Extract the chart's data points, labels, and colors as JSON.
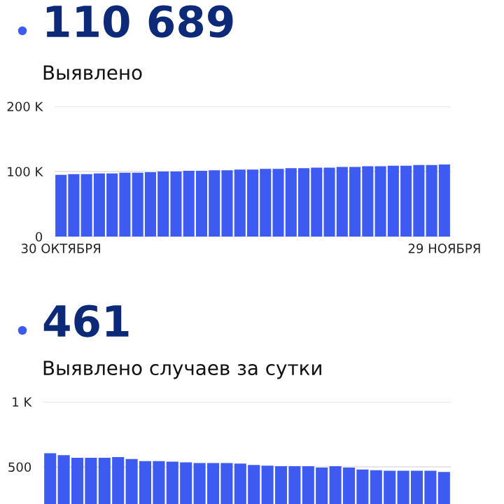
{
  "chart_data": [
    {
      "type": "bar",
      "title": "110 689",
      "subtitle": "Выявлено",
      "color": "#3d5af1",
      "categories": [
        "30 ОКТЯБРЯ",
        null,
        null,
        null,
        null,
        null,
        null,
        null,
        null,
        null,
        null,
        null,
        null,
        null,
        null,
        null,
        null,
        null,
        null,
        null,
        null,
        null,
        null,
        null,
        null,
        null,
        null,
        null,
        null,
        null,
        "29 НОЯБРЯ"
      ],
      "values": [
        95000,
        96000,
        96000,
        97000,
        97000,
        98000,
        98000,
        99000,
        100000,
        100000,
        101000,
        101000,
        102000,
        102000,
        103000,
        103000,
        104000,
        104000,
        105000,
        105000,
        106000,
        106000,
        107000,
        107000,
        108000,
        108000,
        109000,
        109000,
        110000,
        110000,
        110689
      ],
      "ylim": [
        0,
        200000
      ],
      "yticks": [
        0,
        {
          "value": 100000,
          "label": "100 K"
        },
        {
          "value": 200000,
          "label": "200 K"
        }
      ],
      "grid": "y"
    },
    {
      "type": "bar",
      "title": "461",
      "subtitle": "Выявлено случаев за сутки",
      "color": "#3d5af1",
      "categories": [
        null,
        null,
        null,
        null,
        null,
        null,
        null,
        null,
        null,
        null,
        null,
        null,
        null,
        null,
        null,
        null,
        null,
        null,
        null,
        null,
        null,
        null,
        null,
        null,
        null,
        null,
        null,
        null,
        null,
        null
      ],
      "values": [
        605,
        590,
        570,
        570,
        570,
        575,
        560,
        545,
        545,
        540,
        535,
        530,
        530,
        530,
        525,
        515,
        510,
        505,
        505,
        505,
        495,
        505,
        495,
        480,
        475,
        470,
        470,
        470,
        470,
        461
      ],
      "ylim": [
        0,
        1000
      ],
      "yticks": [
        500,
        {
          "value": 1000,
          "label": "1 K"
        }
      ],
      "grid": "y"
    }
  ]
}
